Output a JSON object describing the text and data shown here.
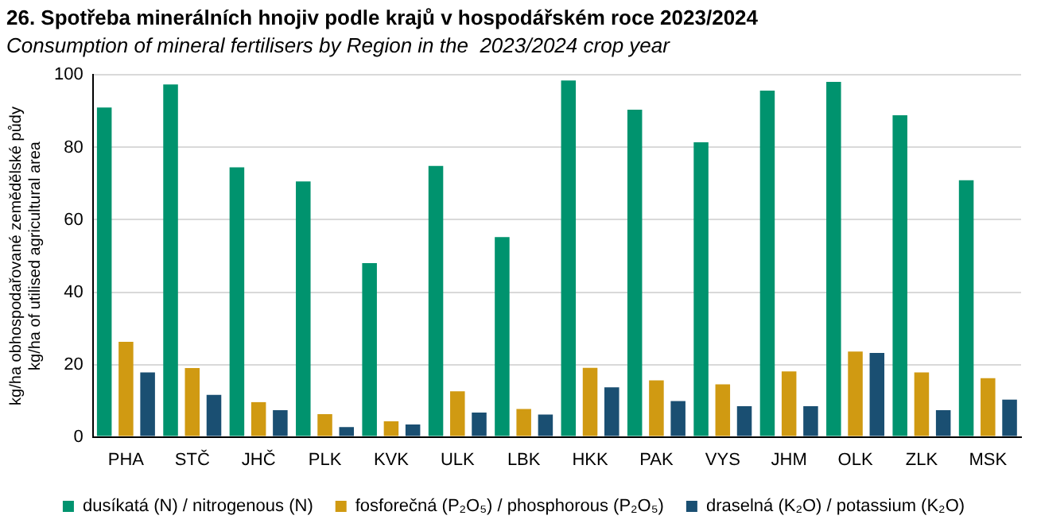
{
  "chart_data": {
    "type": "bar",
    "title": "26. Spotřeba minerálních hnojiv podle krajů v hospodářském roce 2023/2024",
    "subtitle": "Consumption of mineral fertilisers by Region in the  2023/2024 crop year",
    "ylabel": "kg/ha obhospodařované zemědělské půdy\nkg/ha of utilised agricultural area",
    "categories": [
      "PHA",
      "STČ",
      "JHČ",
      "PLK",
      "KVK",
      "ULK",
      "LBK",
      "HKK",
      "PAK",
      "VYS",
      "JHM",
      "OLK",
      "ZLK",
      "MSK"
    ],
    "series": [
      {
        "name": "dusíkatá (N) / nitrogenous (N)",
        "color": "#00936e",
        "values": [
          91,
          97.4,
          74.5,
          70.6,
          48,
          74.9,
          55.2,
          98.5,
          90.4,
          81.4,
          95.7,
          98.1,
          88.9,
          70.9
        ]
      },
      {
        "name": "fosforečná (P₂O₅) / phosphorous (P₂O₅)",
        "color": "#d09a12",
        "values": [
          26.3,
          19,
          9.6,
          6.3,
          4.3,
          12.6,
          7.7,
          19.1,
          15.6,
          14.5,
          18.1,
          23.6,
          17.8,
          16.2
        ]
      },
      {
        "name": "draselná (K₂O) / potassium (K₂O)",
        "color": "#1a4f72",
        "values": [
          17.8,
          11.6,
          7.4,
          2.7,
          3.4,
          6.7,
          6.2,
          13.7,
          9.9,
          8.5,
          8.5,
          23.2,
          7.4,
          10.3
        ]
      }
    ],
    "ylim": [
      0,
      100
    ],
    "yticks": [
      0,
      20,
      40,
      60,
      80,
      100
    ],
    "grid": "y",
    "legend": "bottom"
  }
}
